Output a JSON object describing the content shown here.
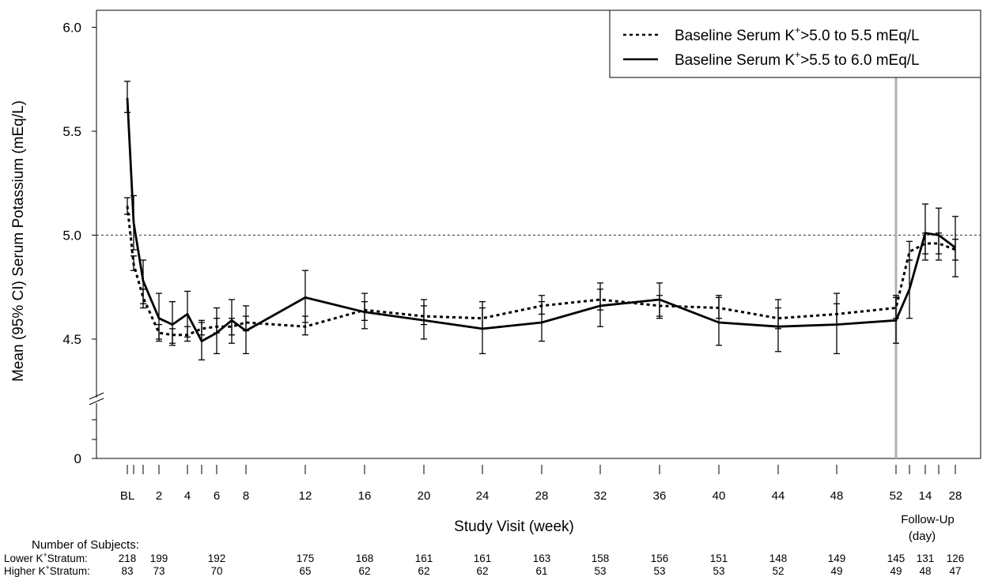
{
  "chart_data": {
    "type": "line",
    "ylabel": "Mean (95% CI) Serum Potassium (mEq/L)",
    "xlabel": "Study Visit (week)",
    "followup_label": "Follow-Up",
    "followup_unit": "(day)",
    "y_ticks": [
      "0",
      "4.5",
      "5.0",
      "5.5",
      "6.0"
    ],
    "reference_value": 5.0,
    "x_tick_labels": [
      {
        "label": "BL",
        "t": 0
      },
      {
        "label": "2",
        "t": 2
      },
      {
        "label": "4",
        "t": 4
      },
      {
        "label": "6",
        "t": 6
      },
      {
        "label": "8",
        "t": 8
      },
      {
        "label": "12",
        "t": 12
      },
      {
        "label": "16",
        "t": 16
      },
      {
        "label": "20",
        "t": 20
      },
      {
        "label": "24",
        "t": 24
      },
      {
        "label": "28",
        "t": 28
      },
      {
        "label": "32",
        "t": 32
      },
      {
        "label": "36",
        "t": 36
      },
      {
        "label": "40",
        "t": 40
      },
      {
        "label": "44",
        "t": 44
      },
      {
        "label": "48",
        "t": 48
      },
      {
        "label": "52",
        "t": 52
      },
      {
        "label": "14",
        "t": 54
      },
      {
        "label": "28",
        "t": 56
      }
    ],
    "extra_ticks": [
      0.6,
      1,
      5,
      53,
      54.8
    ],
    "followup_divider_t": 52,
    "legend": {
      "placement": "top-right",
      "entries": [
        {
          "prefix": "Baseline Serum K",
          "sup": "+",
          "suffix": ">5.0 to 5.5 mEq/L",
          "style": "dotted"
        },
        {
          "prefix": "Baseline Serum K",
          "sup": "+",
          "suffix": ">5.5 to 6.0 mEq/L",
          "style": "solid"
        }
      ]
    },
    "series": [
      {
        "style": "dotted",
        "points": [
          {
            "t": 0,
            "y": 5.14,
            "lo": 5.1,
            "hi": 5.18
          },
          {
            "t": 0.6,
            "y": 4.86,
            "lo": 4.83,
            "hi": 4.9
          },
          {
            "t": 1,
            "y": 4.7,
            "lo": 4.65,
            "hi": 4.74
          },
          {
            "t": 2,
            "y": 4.53,
            "lo": 4.5,
            "hi": 4.57
          },
          {
            "t": 3,
            "y": 4.52,
            "lo": 4.48,
            "hi": 4.55
          },
          {
            "t": 4,
            "y": 4.52,
            "lo": 4.49,
            "hi": 4.56
          },
          {
            "t": 5,
            "y": 4.55,
            "lo": 4.52,
            "hi": 4.58
          },
          {
            "t": 6,
            "y": 4.56,
            "lo": 4.53,
            "hi": 4.6
          },
          {
            "t": 7,
            "y": 4.56,
            "lo": 4.52,
            "hi": 4.6
          },
          {
            "t": 8,
            "y": 4.58,
            "lo": 4.54,
            "hi": 4.61
          },
          {
            "t": 12,
            "y": 4.56,
            "lo": 4.52,
            "hi": 4.61
          },
          {
            "t": 16,
            "y": 4.64,
            "lo": 4.59,
            "hi": 4.68
          },
          {
            "t": 20,
            "y": 4.61,
            "lo": 4.57,
            "hi": 4.66
          },
          {
            "t": 24,
            "y": 4.6,
            "lo": 4.55,
            "hi": 4.65
          },
          {
            "t": 28,
            "y": 4.66,
            "lo": 4.62,
            "hi": 4.71
          },
          {
            "t": 32,
            "y": 4.69,
            "lo": 4.64,
            "hi": 4.74
          },
          {
            "t": 36,
            "y": 4.66,
            "lo": 4.61,
            "hi": 4.71
          },
          {
            "t": 40,
            "y": 4.65,
            "lo": 4.6,
            "hi": 4.7
          },
          {
            "t": 44,
            "y": 4.6,
            "lo": 4.55,
            "hi": 4.65
          },
          {
            "t": 48,
            "y": 4.62,
            "lo": 4.57,
            "hi": 4.67
          },
          {
            "t": 52,
            "y": 4.65,
            "lo": 4.6,
            "hi": 4.7
          },
          {
            "t": 53,
            "y": 4.92,
            "lo": 4.88,
            "hi": 4.97
          },
          {
            "t": 54,
            "y": 4.96,
            "lo": 4.91,
            "hi": 5.01
          },
          {
            "t": 54.8,
            "y": 4.96,
            "lo": 4.91,
            "hi": 5.01
          },
          {
            "t": 56,
            "y": 4.93,
            "lo": 4.88,
            "hi": 4.98
          }
        ]
      },
      {
        "style": "solid",
        "points": [
          {
            "t": 0,
            "y": 5.66,
            "lo": 5.59,
            "hi": 5.74
          },
          {
            "t": 0.6,
            "y": 5.06,
            "lo": 4.93,
            "hi": 5.19
          },
          {
            "t": 1,
            "y": 4.78,
            "lo": 4.67,
            "hi": 4.88
          },
          {
            "t": 2,
            "y": 4.6,
            "lo": 4.49,
            "hi": 4.72
          },
          {
            "t": 3,
            "y": 4.57,
            "lo": 4.47,
            "hi": 4.68
          },
          {
            "t": 4,
            "y": 4.62,
            "lo": 4.51,
            "hi": 4.73
          },
          {
            "t": 5,
            "y": 4.49,
            "lo": 4.4,
            "hi": 4.59
          },
          {
            "t": 6,
            "y": 4.53,
            "lo": 4.43,
            "hi": 4.65
          },
          {
            "t": 7,
            "y": 4.59,
            "lo": 4.48,
            "hi": 4.69
          },
          {
            "t": 8,
            "y": 4.54,
            "lo": 4.43,
            "hi": 4.66
          },
          {
            "t": 12,
            "y": 4.7,
            "lo": 4.58,
            "hi": 4.83
          },
          {
            "t": 16,
            "y": 4.63,
            "lo": 4.55,
            "hi": 4.72
          },
          {
            "t": 20,
            "y": 4.59,
            "lo": 4.5,
            "hi": 4.69
          },
          {
            "t": 24,
            "y": 4.55,
            "lo": 4.43,
            "hi": 4.68
          },
          {
            "t": 28,
            "y": 4.58,
            "lo": 4.49,
            "hi": 4.68
          },
          {
            "t": 32,
            "y": 4.66,
            "lo": 4.56,
            "hi": 4.77
          },
          {
            "t": 36,
            "y": 4.69,
            "lo": 4.6,
            "hi": 4.77
          },
          {
            "t": 40,
            "y": 4.58,
            "lo": 4.47,
            "hi": 4.71
          },
          {
            "t": 44,
            "y": 4.56,
            "lo": 4.44,
            "hi": 4.69
          },
          {
            "t": 48,
            "y": 4.57,
            "lo": 4.43,
            "hi": 4.72
          },
          {
            "t": 52,
            "y": 4.59,
            "lo": 4.48,
            "hi": 4.71
          },
          {
            "t": 53,
            "y": 4.74,
            "lo": 4.6,
            "hi": 4.88
          },
          {
            "t": 54,
            "y": 5.01,
            "lo": 4.88,
            "hi": 5.15
          },
          {
            "t": 54.8,
            "y": 5.0,
            "lo": 4.88,
            "hi": 5.13
          },
          {
            "t": 56,
            "y": 4.94,
            "lo": 4.8,
            "hi": 5.09
          }
        ]
      }
    ],
    "subjects": {
      "title": "Number of Subjects:",
      "rows": [
        {
          "label": "Lower K",
          "sup": "+",
          "suffix": "Stratum:",
          "values": [
            {
              "t": 0,
              "n": "218"
            },
            {
              "t": 2,
              "n": "199"
            },
            {
              "t": 6,
              "n": "192"
            },
            {
              "t": 12,
              "n": "175"
            },
            {
              "t": 16,
              "n": "168"
            },
            {
              "t": 20,
              "n": "161"
            },
            {
              "t": 24,
              "n": "161"
            },
            {
              "t": 28,
              "n": "163"
            },
            {
              "t": 32,
              "n": "158"
            },
            {
              "t": 36,
              "n": "156"
            },
            {
              "t": 40,
              "n": "151"
            },
            {
              "t": 44,
              "n": "148"
            },
            {
              "t": 48,
              "n": "149"
            },
            {
              "t": 52,
              "n": "145"
            },
            {
              "t": 54,
              "n": "131"
            },
            {
              "t": 56,
              "n": "126"
            }
          ]
        },
        {
          "label": "Higher K",
          "sup": "+",
          "suffix": "Stratum:",
          "values": [
            {
              "t": 0,
              "n": "83"
            },
            {
              "t": 2,
              "n": "73"
            },
            {
              "t": 6,
              "n": "70"
            },
            {
              "t": 12,
              "n": "65"
            },
            {
              "t": 16,
              "n": "62"
            },
            {
              "t": 20,
              "n": "62"
            },
            {
              "t": 24,
              "n": "62"
            },
            {
              "t": 28,
              "n": "61"
            },
            {
              "t": 32,
              "n": "53"
            },
            {
              "t": 36,
              "n": "53"
            },
            {
              "t": 40,
              "n": "53"
            },
            {
              "t": 44,
              "n": "52"
            },
            {
              "t": 48,
              "n": "49"
            },
            {
              "t": 52,
              "n": "49"
            },
            {
              "t": 54,
              "n": "48"
            },
            {
              "t": 56,
              "n": "47"
            }
          ]
        }
      ]
    }
  }
}
